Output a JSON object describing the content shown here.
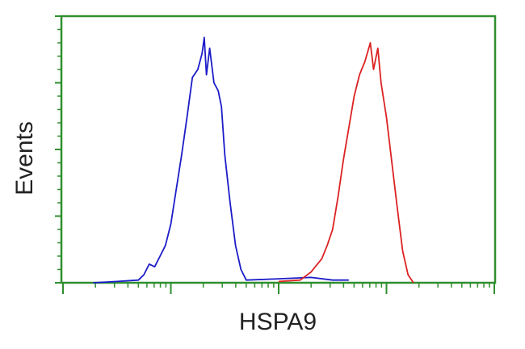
{
  "chart_data": {
    "type": "line",
    "title": "",
    "xlabel": "HSPA9",
    "ylabel": "Events",
    "xscale": "log",
    "xlim": [
      0,
      4
    ],
    "ylim": [
      0,
      100
    ],
    "grid": false,
    "colors": {
      "frame": "#2f8f2f",
      "background": "#ffffff"
    },
    "series": [
      {
        "color": "#1c1cc8",
        "x": [
          0.28,
          0.5,
          0.7,
          0.75,
          0.8,
          0.85,
          0.9,
          0.95,
          1.0,
          1.05,
          1.1,
          1.15,
          1.2,
          1.25,
          1.29,
          1.31,
          1.33,
          1.36,
          1.4,
          1.44,
          1.47,
          1.5,
          1.55,
          1.6,
          1.65,
          1.7,
          2.0,
          2.3,
          2.5,
          2.65
        ],
        "y": [
          0,
          0.5,
          1,
          3,
          7,
          6,
          10,
          14,
          22,
          35,
          48,
          62,
          77,
          80,
          86,
          92,
          78,
          88,
          75,
          72,
          66,
          48,
          30,
          14,
          5,
          1,
          1.5,
          2,
          1,
          1
        ]
      },
      {
        "color": "#dc2222",
        "x": [
          2.0,
          2.2,
          2.3,
          2.4,
          2.45,
          2.5,
          2.55,
          2.6,
          2.65,
          2.7,
          2.75,
          2.8,
          2.85,
          2.88,
          2.92,
          2.95,
          3.0,
          3.05,
          3.1,
          3.15,
          3.2,
          3.25
        ],
        "y": [
          0.5,
          1,
          4,
          9,
          14,
          20,
          32,
          46,
          58,
          70,
          78,
          83,
          90,
          80,
          88,
          75,
          62,
          45,
          28,
          12,
          3,
          0
        ]
      }
    ]
  }
}
